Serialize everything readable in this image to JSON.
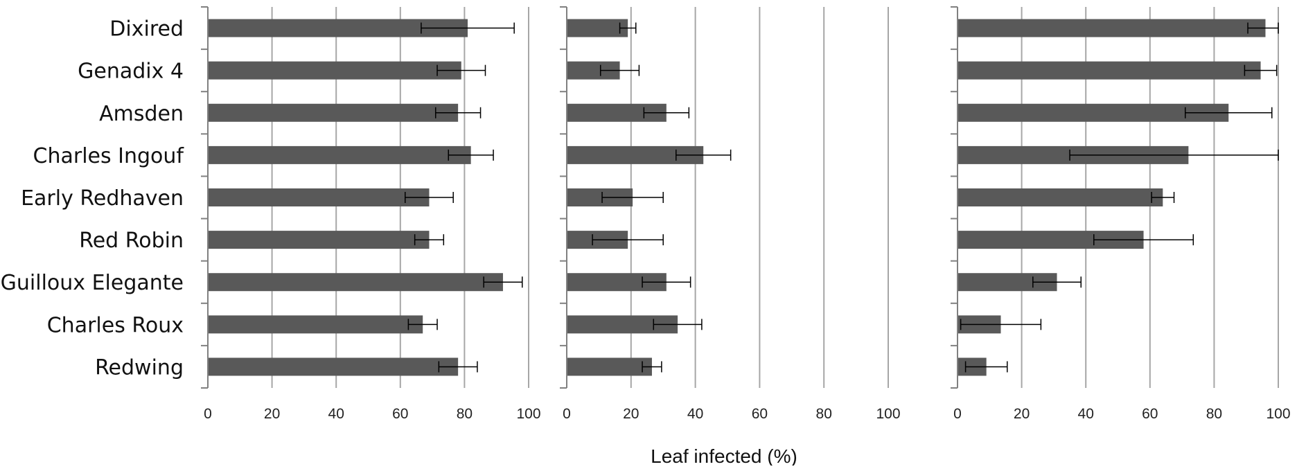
{
  "chart_data": {
    "type": "bar",
    "orientation": "horizontal",
    "xlabel": "Leaf infected (%)",
    "xlim": [
      0,
      100
    ],
    "xticks": [
      "0",
      "20",
      "40",
      "60",
      "80",
      "100"
    ],
    "grid": true,
    "colors": {
      "bar": "#595959",
      "grid": "#a6a6a6",
      "axis": "#808080",
      "errorbar": "#000000"
    },
    "categories": [
      "Dixired",
      "Genadix 4",
      "Amsden",
      "Charles Ingouf",
      "Early Redhaven",
      "Red Robin",
      "Guilloux Elegante",
      "Charles Roux",
      "Redwing"
    ],
    "panels": [
      {
        "values": [
          81,
          79,
          78,
          82,
          69,
          69,
          92,
          67,
          78
        ],
        "errors": [
          14.5,
          7.5,
          7,
          7,
          7.5,
          4.5,
          6,
          4.5,
          6
        ]
      },
      {
        "values": [
          19,
          16.5,
          31,
          42.5,
          20.5,
          19,
          31,
          34.5,
          26.5
        ],
        "errors": [
          2.5,
          6,
          7,
          8.5,
          9.5,
          11,
          7.5,
          7.5,
          3
        ]
      },
      {
        "values": [
          96,
          94.5,
          84.5,
          72,
          64,
          58,
          31,
          13.5,
          9
        ],
        "errors": [
          5.5,
          5,
          13.5,
          37,
          3.5,
          15.5,
          7.5,
          12.5,
          6.5
        ]
      }
    ]
  }
}
